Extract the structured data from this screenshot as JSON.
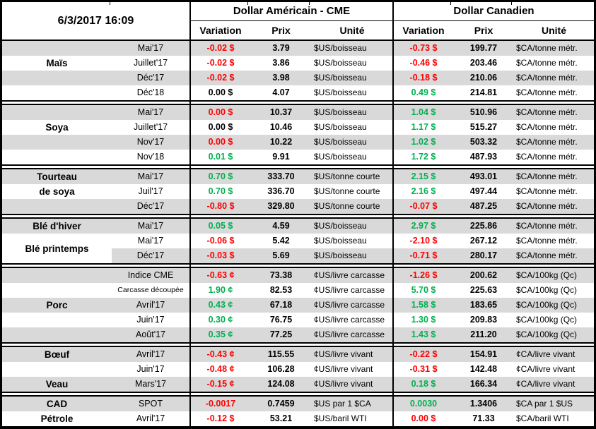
{
  "header": {
    "timestamp": "6/3/2017 16:09",
    "us_block_title": "Dollar Américain - CME",
    "ca_block_title": "Dollar Canadien",
    "col_variation": "Variation",
    "col_prix": "Prix",
    "col_unite": "Unité"
  },
  "colors": {
    "negative": "#FF0000",
    "positive": "#00B050",
    "neutral": "#000000",
    "row_shaded": "#D9D9D9",
    "border": "#000000"
  },
  "sections": [
    {
      "name": "mais",
      "labels": [
        {
          "text": "Maïs",
          "row": 1,
          "span": 1
        }
      ],
      "rows": [
        {
          "month": "Mai'17",
          "us_var": "-0.02 $",
          "us_var_c": "red",
          "us_prix": "3.79",
          "us_unit": "$US/boisseau",
          "ca_var": "-0.73 $",
          "ca_var_c": "red",
          "ca_prix": "199.77",
          "ca_unit": "$CA/tonne métr.",
          "shade": "full"
        },
        {
          "month": "Juillet'17",
          "us_var": "-0.02 $",
          "us_var_c": "red",
          "us_prix": "3.86",
          "us_unit": "$US/boisseau",
          "ca_var": "-0.46 $",
          "ca_var_c": "red",
          "ca_prix": "203.46",
          "ca_unit": "$CA/tonne métr.",
          "shade": "none"
        },
        {
          "month": "Déc'17",
          "us_var": "-0.02 $",
          "us_var_c": "red",
          "us_prix": "3.98",
          "us_unit": "$US/boisseau",
          "ca_var": "-0.18 $",
          "ca_var_c": "red",
          "ca_prix": "210.06",
          "ca_unit": "$CA/tonne métr.",
          "shade": "full"
        },
        {
          "month": "Déc'18",
          "us_var": "0.00 $",
          "us_var_c": "black",
          "us_prix": "4.07",
          "us_unit": "$US/boisseau",
          "ca_var": "0.49 $",
          "ca_var_c": "green",
          "ca_prix": "214.81",
          "ca_unit": "$CA/tonne métr.",
          "shade": "none"
        }
      ]
    },
    {
      "name": "soya",
      "labels": [
        {
          "text": "Soya",
          "row": 1,
          "span": 1
        }
      ],
      "rows": [
        {
          "month": "Mai'17",
          "us_var": "0.00 $",
          "us_var_c": "red",
          "us_prix": "10.37",
          "us_unit": "$US/boisseau",
          "ca_var": "1.04 $",
          "ca_var_c": "green",
          "ca_prix": "510.96",
          "ca_unit": "$CA/tonne métr.",
          "shade": "full"
        },
        {
          "month": "Juillet'17",
          "us_var": "0.00 $",
          "us_var_c": "black",
          "us_prix": "10.46",
          "us_unit": "$US/boisseau",
          "ca_var": "1.17 $",
          "ca_var_c": "green",
          "ca_prix": "515.27",
          "ca_unit": "$CA/tonne métr.",
          "shade": "none"
        },
        {
          "month": "Nov'17",
          "us_var": "0.00 $",
          "us_var_c": "red",
          "us_prix": "10.22",
          "us_unit": "$US/boisseau",
          "ca_var": "1.02 $",
          "ca_var_c": "green",
          "ca_prix": "503.32",
          "ca_unit": "$CA/tonne métr.",
          "shade": "full"
        },
        {
          "month": "Nov'18",
          "us_var": "0.01 $",
          "us_var_c": "green",
          "us_prix": "9.91",
          "us_unit": "$US/boisseau",
          "ca_var": "1.72 $",
          "ca_var_c": "green",
          "ca_prix": "487.93",
          "ca_unit": "$CA/tonne métr.",
          "shade": "none"
        }
      ]
    },
    {
      "name": "tourteau-de-soya",
      "labels": [
        {
          "text": "Tourteau",
          "row": 0,
          "span": 1
        },
        {
          "text": "de soya",
          "row": 1,
          "span": 1
        }
      ],
      "rows": [
        {
          "month": "Mai'17",
          "us_var": "0.70 $",
          "us_var_c": "green",
          "us_prix": "333.70",
          "us_unit": "$US/tonne courte",
          "ca_var": "2.15 $",
          "ca_var_c": "green",
          "ca_prix": "493.01",
          "ca_unit": "$CA/tonne métr.",
          "shade": "full"
        },
        {
          "month": "Juil'17",
          "us_var": "0.70 $",
          "us_var_c": "green",
          "us_prix": "336.70",
          "us_unit": "$US/tonne courte",
          "ca_var": "2.16 $",
          "ca_var_c": "green",
          "ca_prix": "497.44",
          "ca_unit": "$CA/tonne métr.",
          "shade": "none"
        },
        {
          "month": "Déc'17",
          "us_var": "-0.80 $",
          "us_var_c": "red",
          "us_prix": "329.80",
          "us_unit": "$US/tonne courte",
          "ca_var": "-0.07 $",
          "ca_var_c": "red",
          "ca_prix": "487.25",
          "ca_unit": "$CA/tonne métr.",
          "shade": "full"
        }
      ]
    },
    {
      "name": "ble",
      "labels": [
        {
          "text": "Blé d'hiver",
          "row": 0,
          "span": 1
        },
        {
          "text": "Blé printemps",
          "row": 1,
          "span": 2
        }
      ],
      "rows": [
        {
          "month": "Mai'17",
          "us_var": "0.05 $",
          "us_var_c": "green",
          "us_prix": "4.59",
          "us_unit": "$US/boisseau",
          "ca_var": "2.97 $",
          "ca_var_c": "green",
          "ca_prix": "225.86",
          "ca_unit": "$CA/tonne métr.",
          "shade": "full"
        },
        {
          "month": "Mai'17",
          "us_var": "-0.06 $",
          "us_var_c": "red",
          "us_prix": "5.42",
          "us_unit": "$US/boisseau",
          "ca_var": "-2.10 $",
          "ca_var_c": "red",
          "ca_prix": "267.12",
          "ca_unit": "$CA/tonne métr.",
          "shade": "none"
        },
        {
          "month": "Déc'17",
          "us_var": "-0.03 $",
          "us_var_c": "red",
          "us_prix": "5.69",
          "us_unit": "$US/boisseau",
          "ca_var": "-0.71 $",
          "ca_var_c": "red",
          "ca_prix": "280.17",
          "ca_unit": "$CA/tonne métr.",
          "shade": "from-month"
        }
      ]
    },
    {
      "name": "porc",
      "labels": [
        {
          "text": "Porc",
          "row": 2,
          "span": 1
        }
      ],
      "rows": [
        {
          "month": "Indice CME",
          "us_var": "-0.63 ¢",
          "us_var_c": "red",
          "us_prix": "73.38",
          "us_unit": "¢US/livre carcasse",
          "ca_var": "-1.26 $",
          "ca_var_c": "red",
          "ca_prix": "200.62",
          "ca_unit": "$CA/100kg (Qc)",
          "shade": "full"
        },
        {
          "month": "Carcasse découpée",
          "us_var": "1.90 ¢",
          "us_var_c": "green",
          "us_prix": "82.53",
          "us_unit": "¢US/livre carcasse",
          "ca_var": "5.70 $",
          "ca_var_c": "green",
          "ca_prix": "225.63",
          "ca_unit": "$CA/100kg (Qc)",
          "shade": "none"
        },
        {
          "month": "Avril'17",
          "us_var": "0.43 ¢",
          "us_var_c": "green",
          "us_prix": "67.18",
          "us_unit": "¢US/livre carcasse",
          "ca_var": "1.58 $",
          "ca_var_c": "green",
          "ca_prix": "183.65",
          "ca_unit": "$CA/100kg (Qc)",
          "shade": "full"
        },
        {
          "month": "Juin'17",
          "us_var": "0.30 ¢",
          "us_var_c": "green",
          "us_prix": "76.75",
          "us_unit": "¢US/livre carcasse",
          "ca_var": "1.30 $",
          "ca_var_c": "green",
          "ca_prix": "209.83",
          "ca_unit": "$CA/100kg (Qc)",
          "shade": "none"
        },
        {
          "month": "Août'17",
          "us_var": "0.35 ¢",
          "us_var_c": "green",
          "us_prix": "77.25",
          "us_unit": "¢US/livre carcasse",
          "ca_var": "1.43 $",
          "ca_var_c": "green",
          "ca_prix": "211.20",
          "ca_unit": "$CA/100kg (Qc)",
          "shade": "full"
        }
      ]
    },
    {
      "name": "boeuf-veau",
      "labels": [
        {
          "text": "Bœuf",
          "row": 0,
          "span": 1
        },
        {
          "text": "Veau",
          "row": 2,
          "span": 1
        }
      ],
      "rows": [
        {
          "month": "Avril'17",
          "us_var": "-0.43 ¢",
          "us_var_c": "red",
          "us_prix": "115.55",
          "us_unit": "¢US/livre vivant",
          "ca_var": "-0.22 $",
          "ca_var_c": "red",
          "ca_prix": "154.91",
          "ca_unit": "¢CA/livre vivant",
          "shade": "full"
        },
        {
          "month": "Juin'17",
          "us_var": "-0.48 ¢",
          "us_var_c": "red",
          "us_prix": "106.28",
          "us_unit": "¢US/livre vivant",
          "ca_var": "-0.31 $",
          "ca_var_c": "red",
          "ca_prix": "142.48",
          "ca_unit": "¢CA/livre vivant",
          "shade": "none"
        },
        {
          "month": "Mars'17",
          "us_var": "-0.15 ¢",
          "us_var_c": "red",
          "us_prix": "124.08",
          "us_unit": "¢US/livre vivant",
          "ca_var": "0.18 $",
          "ca_var_c": "green",
          "ca_prix": "166.34",
          "ca_unit": "¢CA/livre vivant",
          "shade": "full"
        }
      ]
    },
    {
      "name": "cad-petrole",
      "labels": [
        {
          "text": "CAD",
          "row": 0,
          "span": 1
        },
        {
          "text": "Pétrole",
          "row": 1,
          "span": 1
        }
      ],
      "rows": [
        {
          "month": "SPOT",
          "us_var": "-0.0017",
          "us_var_c": "red",
          "us_prix": "0.7459",
          "us_unit": "$US par 1 $CA",
          "ca_var": "0.0030",
          "ca_var_c": "green",
          "ca_prix": "1.3406",
          "ca_unit": "$CA par 1 $US",
          "shade": "full"
        },
        {
          "month": "Avril'17",
          "us_var": "-0.12 $",
          "us_var_c": "red",
          "us_prix": "53.21",
          "us_unit": "$US/baril WTI",
          "ca_var": "0.00 $",
          "ca_var_c": "red",
          "ca_prix": "71.33",
          "ca_unit": "$CA/baril WTI",
          "shade": "none"
        }
      ]
    }
  ]
}
